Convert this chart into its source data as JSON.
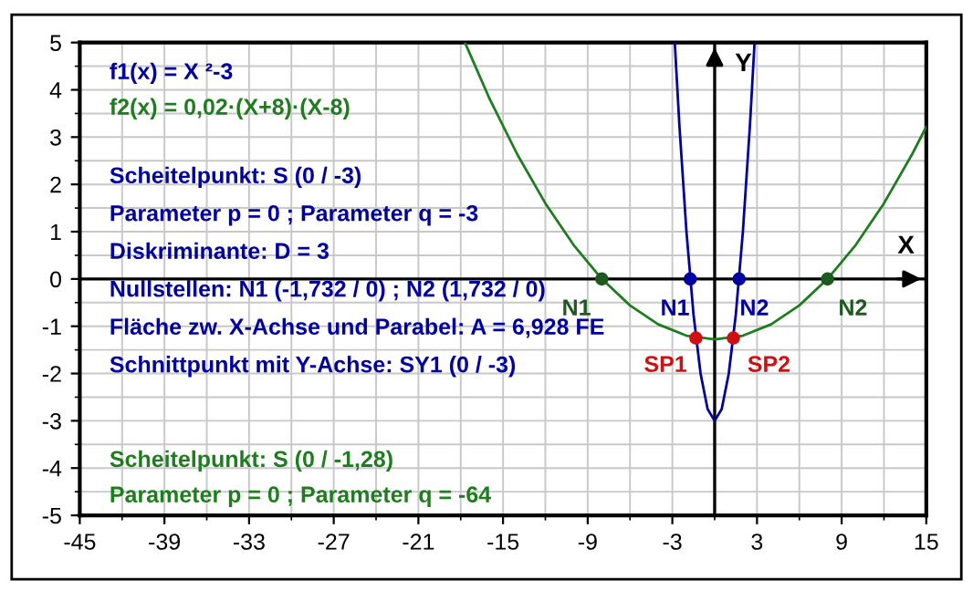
{
  "chart_data": {
    "type": "line",
    "xlabel": "X",
    "ylabel": "Y",
    "series": [
      {
        "name": "f1(x) = X ²-3",
        "color": "#0000a0",
        "marker": "none",
        "x": [
          -2.828,
          -2.5,
          -2,
          -1.5,
          -1,
          -0.5,
          0,
          0.5,
          1,
          1.5,
          2,
          2.5,
          2.828
        ],
        "values": [
          5,
          3.25,
          1,
          -0.75,
          -2,
          -2.75,
          -3,
          -2.75,
          -2,
          -0.75,
          1,
          3.25,
          5
        ]
      },
      {
        "name": "f2(x) = 0,02·(X+8)·(X-8)",
        "color": "#1e7d1e",
        "marker": "none",
        "x": [
          -17.7,
          -16,
          -14,
          -12,
          -10,
          -8,
          -6,
          -4,
          -2,
          0,
          2,
          4,
          6,
          8,
          10,
          12,
          14,
          15
        ],
        "values": [
          5,
          3.84,
          2.64,
          1.6,
          0.72,
          0,
          -0.56,
          -0.96,
          -1.2,
          -1.28,
          -1.2,
          -0.96,
          -0.56,
          0,
          0.72,
          1.6,
          2.64,
          3.22
        ]
      },
      {
        "color": "#0000a0",
        "type": "scatter",
        "marker": "circle",
        "x": [
          -1.732,
          1.732
        ],
        "values": [
          0,
          0
        ]
      },
      {
        "color": "#1e5a1e",
        "type": "scatter",
        "marker": "circle",
        "x": [
          -8,
          8
        ],
        "values": [
          0,
          0
        ]
      },
      {
        "color": "#d01010",
        "type": "scatter",
        "marker": "circle",
        "x": [
          -1.33,
          1.33
        ],
        "values": [
          -1.25,
          -1.25
        ]
      }
    ],
    "annotations": [
      "Scheitelpunkt: S (0 / -3)",
      "Parameter p = 0 ; Parameter q = -3",
      "Diskriminante: D = 3",
      "Nullstellen: N1 (-1,732 / 0) ; N2 (1,732 / 0)",
      "Fläche zw. X-Achse und Parabel: A = 6,928 FE",
      "Schnittpunkt mit Y-Achse: SY1 (0 / -3)",
      "Scheitelpunkt: S (0 / -1,28)",
      "Parameter p = 0 ; Parameter q = -64",
      {
        "text": "N1",
        "x": -1.732,
        "y": 0
      },
      {
        "text": "N2",
        "x": 1.732,
        "y": 0
      },
      {
        "text": "N1",
        "x": -8,
        "y": 0
      },
      {
        "text": "N2",
        "x": 8,
        "y": 0
      },
      {
        "text": "SP1",
        "x": -1.33,
        "y": -1.25
      },
      {
        "text": "SP2",
        "x": 1.33,
        "y": -1.25
      }
    ],
    "xlim": [
      -45,
      15
    ],
    "ylim": [
      -5,
      5
    ],
    "xticks": [
      -45,
      -39,
      -33,
      -27,
      -21,
      -15,
      -9,
      -3,
      3,
      9,
      15
    ],
    "yticks": [
      -5,
      -4,
      -3,
      -2,
      -1,
      0,
      1,
      2,
      3,
      4,
      5
    ],
    "grid": true,
    "legend": false,
    "line_style": "solid"
  }
}
